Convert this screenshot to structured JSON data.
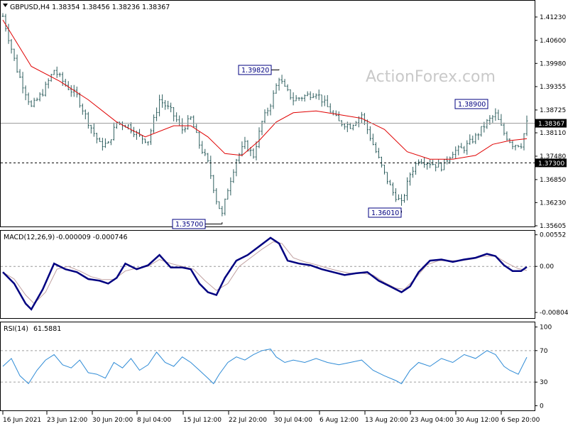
{
  "header": {
    "symbol": "GBPUSD,H4",
    "open": "1.38354",
    "high": "1.38456",
    "low": "1.38236",
    "close": "1.38367"
  },
  "watermark": "ActionForex.com",
  "colors": {
    "bars": "#2f5f5f",
    "ma": "#e00000",
    "macd_line": "#000080",
    "macd_signal": "#c0a0a0",
    "rsi_line": "#2e8bd6",
    "label_box": "#000080",
    "current_price_bg": "#000000"
  },
  "chart_data": [
    {
      "type": "bar",
      "panel": "price",
      "indicator": "GBPUSD H4 OHLC bars with moving average",
      "ylim": [
        1.35605,
        1.4165
      ],
      "y_ticks": [
        "1.41230",
        "1.40600",
        "1.39980",
        "1.39355",
        "1.38725",
        "1.38110",
        "1.37480",
        "1.36850",
        "1.36230",
        "1.35605"
      ],
      "x_ticks": [
        "16 Jun 2021",
        "23 Jun 12:00",
        "30 Jun 20:00",
        "8 Jul 04:00",
        "15 Jul 12:00",
        "22 Jul 20:00",
        "30 Jul 04:00",
        "6 Aug 12:00",
        "13 Aug 20:00",
        "23 Aug 04:00",
        "30 Aug 12:00",
        "6 Sep 20:00"
      ],
      "current_price": "1.38367",
      "support_level": "1.37300",
      "annotations": [
        "1.39820",
        "1.35700",
        "1.36010",
        "1.38900"
      ],
      "close_path": [
        [
          0,
          1.4125
        ],
        [
          5,
          1.398
        ],
        [
          10,
          1.388
        ],
        [
          14,
          1.392
        ],
        [
          18,
          1.398
        ],
        [
          22,
          1.394
        ],
        [
          26,
          1.391
        ],
        [
          30,
          1.384
        ],
        [
          34,
          1.378
        ],
        [
          37,
          1.378
        ],
        [
          40,
          1.384
        ],
        [
          44,
          1.383
        ],
        [
          48,
          1.38
        ],
        [
          51,
          1.379
        ],
        [
          55,
          1.39
        ],
        [
          59,
          1.387
        ],
        [
          63,
          1.382
        ],
        [
          66,
          1.385
        ],
        [
          69,
          1.378
        ],
        [
          72,
          1.373
        ],
        [
          75,
          1.363
        ],
        [
          77,
          1.359
        ],
        [
          79,
          1.366
        ],
        [
          82,
          1.374
        ],
        [
          85,
          1.378
        ],
        [
          88,
          1.375
        ],
        [
          91,
          1.384
        ],
        [
          94,
          1.389
        ],
        [
          97,
          1.396
        ],
        [
          99,
          1.393
        ],
        [
          102,
          1.39
        ],
        [
          106,
          1.391
        ],
        [
          110,
          1.392
        ],
        [
          114,
          1.388
        ],
        [
          118,
          1.384
        ],
        [
          122,
          1.383
        ],
        [
          126,
          1.386
        ],
        [
          130,
          1.378
        ],
        [
          134,
          1.37
        ],
        [
          137,
          1.365
        ],
        [
          140,
          1.362
        ],
        [
          143,
          1.37
        ],
        [
          146,
          1.374
        ],
        [
          150,
          1.373
        ],
        [
          154,
          1.372
        ],
        [
          158,
          1.376
        ],
        [
          162,
          1.377
        ],
        [
          166,
          1.38
        ],
        [
          170,
          1.384
        ],
        [
          173,
          1.386
        ],
        [
          176,
          1.381
        ],
        [
          179,
          1.378
        ],
        [
          182,
          1.378
        ],
        [
          184,
          1.3837
        ]
      ],
      "ma_path": [
        [
          0,
          1.4115
        ],
        [
          10,
          1.399
        ],
        [
          20,
          1.395
        ],
        [
          30,
          1.39
        ],
        [
          40,
          1.384
        ],
        [
          50,
          1.38
        ],
        [
          60,
          1.383
        ],
        [
          66,
          1.383
        ],
        [
          72,
          1.38
        ],
        [
          78,
          1.3755
        ],
        [
          84,
          1.375
        ],
        [
          90,
          1.379
        ],
        [
          96,
          1.384
        ],
        [
          102,
          1.3865
        ],
        [
          110,
          1.387
        ],
        [
          118,
          1.386
        ],
        [
          126,
          1.385
        ],
        [
          134,
          1.382
        ],
        [
          142,
          1.376
        ],
        [
          150,
          1.374
        ],
        [
          158,
          1.374
        ],
        [
          166,
          1.375
        ],
        [
          172,
          1.378
        ],
        [
          178,
          1.379
        ],
        [
          184,
          1.3795
        ]
      ]
    },
    {
      "type": "line",
      "panel": "macd",
      "indicator": "MACD(12,26,9)",
      "values_label": "-0.000009 -0.000746",
      "ylim": [
        -0.0089,
        0.0061
      ],
      "y_ticks": [
        "0.00552",
        "0.00",
        "-0.00804"
      ],
      "zero_label": "0.00",
      "series": [
        {
          "values": [
            [
              0,
              -0.001
            ],
            [
              4,
              -0.003
            ],
            [
              8,
              -0.0065
            ],
            [
              10,
              -0.0075
            ],
            [
              14,
              -0.004
            ],
            [
              18,
              0.0005
            ],
            [
              22,
              -0.0005
            ],
            [
              26,
              -0.001
            ],
            [
              30,
              -0.0022
            ],
            [
              34,
              -0.0025
            ],
            [
              37,
              -0.003
            ],
            [
              40,
              -0.002
            ],
            [
              43,
              0.0005
            ],
            [
              47,
              -0.0005
            ],
            [
              51,
              0.0002
            ],
            [
              55,
              0.002
            ],
            [
              59,
              -0.0002
            ],
            [
              63,
              -0.0002
            ],
            [
              66,
              -0.0005
            ],
            [
              69,
              -0.003
            ],
            [
              72,
              -0.0045
            ],
            [
              75,
              -0.005
            ],
            [
              78,
              -0.002
            ],
            [
              82,
              0.001
            ],
            [
              86,
              0.002
            ],
            [
              90,
              0.0035
            ],
            [
              94,
              0.005
            ],
            [
              97,
              0.004
            ],
            [
              100,
              0.001
            ],
            [
              104,
              0.0005
            ],
            [
              108,
              0.0002
            ],
            [
              112,
              -0.0005
            ],
            [
              116,
              -0.001
            ],
            [
              120,
              -0.0015
            ],
            [
              124,
              -0.0012
            ],
            [
              128,
              -0.001
            ],
            [
              132,
              -0.0025
            ],
            [
              136,
              -0.0035
            ],
            [
              140,
              -0.0045
            ],
            [
              143,
              -0.0035
            ],
            [
              146,
              -0.001
            ],
            [
              150,
              0.001
            ],
            [
              154,
              0.0012
            ],
            [
              158,
              0.0008
            ],
            [
              162,
              0.0012
            ],
            [
              166,
              0.0015
            ],
            [
              170,
              0.0022
            ],
            [
              173,
              0.0018
            ],
            [
              176,
              0.0002
            ],
            [
              179,
              -0.0008
            ],
            [
              182,
              -0.0008
            ],
            [
              184,
              -0.0001
            ]
          ]
        },
        {
          "values": [
            [
              0,
              -0.001
            ],
            [
              4,
              -0.0022
            ],
            [
              8,
              -0.005
            ],
            [
              11,
              -0.0065
            ],
            [
              15,
              -0.0045
            ],
            [
              19,
              -0.0005
            ],
            [
              23,
              0.0
            ],
            [
              27,
              -0.0008
            ],
            [
              31,
              -0.0018
            ],
            [
              35,
              -0.0023
            ],
            [
              39,
              -0.0023
            ],
            [
              43,
              -0.0008
            ],
            [
              47,
              -0.0003
            ],
            [
              51,
              0.0
            ],
            [
              55,
              0.0012
            ],
            [
              59,
              0.0005
            ],
            [
              63,
              0.0
            ],
            [
              67,
              -0.0005
            ],
            [
              71,
              -0.0025
            ],
            [
              75,
              -0.0042
            ],
            [
              79,
              -0.003
            ],
            [
              83,
              0.0
            ],
            [
              87,
              0.0015
            ],
            [
              91,
              0.003
            ],
            [
              95,
              0.0043
            ],
            [
              98,
              0.004
            ],
            [
              102,
              0.0015
            ],
            [
              106,
              0.0008
            ],
            [
              110,
              0.0003
            ],
            [
              114,
              -0.0003
            ],
            [
              118,
              -0.0008
            ],
            [
              122,
              -0.0012
            ],
            [
              126,
              -0.0012
            ],
            [
              130,
              -0.0015
            ],
            [
              134,
              -0.0028
            ],
            [
              138,
              -0.0038
            ],
            [
              141,
              -0.004
            ],
            [
              145,
              -0.002
            ],
            [
              149,
              0.0003
            ],
            [
              153,
              0.001
            ],
            [
              157,
              0.001
            ],
            [
              161,
              0.001
            ],
            [
              165,
              0.0013
            ],
            [
              169,
              0.0018
            ],
            [
              173,
              0.0018
            ],
            [
              177,
              0.0006
            ],
            [
              181,
              -0.0004
            ],
            [
              184,
              -0.0007
            ]
          ]
        }
      ]
    },
    {
      "type": "line",
      "panel": "rsi",
      "indicator": "RSI(14)",
      "value_label": "61.5881",
      "ylim": [
        0,
        100
      ],
      "y_ticks": [
        "100",
        "70",
        "30",
        "0"
      ],
      "guides": [
        70,
        30
      ],
      "series": [
        {
          "values": [
            [
              0,
              50
            ],
            [
              3,
              60
            ],
            [
              6,
              38
            ],
            [
              9,
              28
            ],
            [
              12,
              45
            ],
            [
              15,
              58
            ],
            [
              18,
              65
            ],
            [
              21,
              52
            ],
            [
              24,
              48
            ],
            [
              27,
              58
            ],
            [
              30,
              42
            ],
            [
              33,
              40
            ],
            [
              36,
              35
            ],
            [
              39,
              55
            ],
            [
              42,
              48
            ],
            [
              45,
              60
            ],
            [
              48,
              45
            ],
            [
              51,
              52
            ],
            [
              54,
              68
            ],
            [
              57,
              55
            ],
            [
              60,
              50
            ],
            [
              63,
              62
            ],
            [
              66,
              55
            ],
            [
              69,
              45
            ],
            [
              72,
              35
            ],
            [
              74,
              28
            ],
            [
              76,
              40
            ],
            [
              79,
              55
            ],
            [
              82,
              62
            ],
            [
              85,
              58
            ],
            [
              88,
              65
            ],
            [
              91,
              70
            ],
            [
              94,
              72
            ],
            [
              96,
              62
            ],
            [
              99,
              55
            ],
            [
              102,
              58
            ],
            [
              106,
              55
            ],
            [
              110,
              60
            ],
            [
              114,
              55
            ],
            [
              118,
              52
            ],
            [
              122,
              55
            ],
            [
              126,
              58
            ],
            [
              130,
              45
            ],
            [
              134,
              38
            ],
            [
              138,
              32
            ],
            [
              140,
              28
            ],
            [
              143,
              45
            ],
            [
              146,
              55
            ],
            [
              150,
              50
            ],
            [
              154,
              60
            ],
            [
              158,
              55
            ],
            [
              162,
              65
            ],
            [
              166,
              60
            ],
            [
              170,
              70
            ],
            [
              173,
              65
            ],
            [
              176,
              50
            ],
            [
              178,
              45
            ],
            [
              181,
              40
            ],
            [
              184,
              61.6
            ]
          ]
        }
      ]
    }
  ]
}
